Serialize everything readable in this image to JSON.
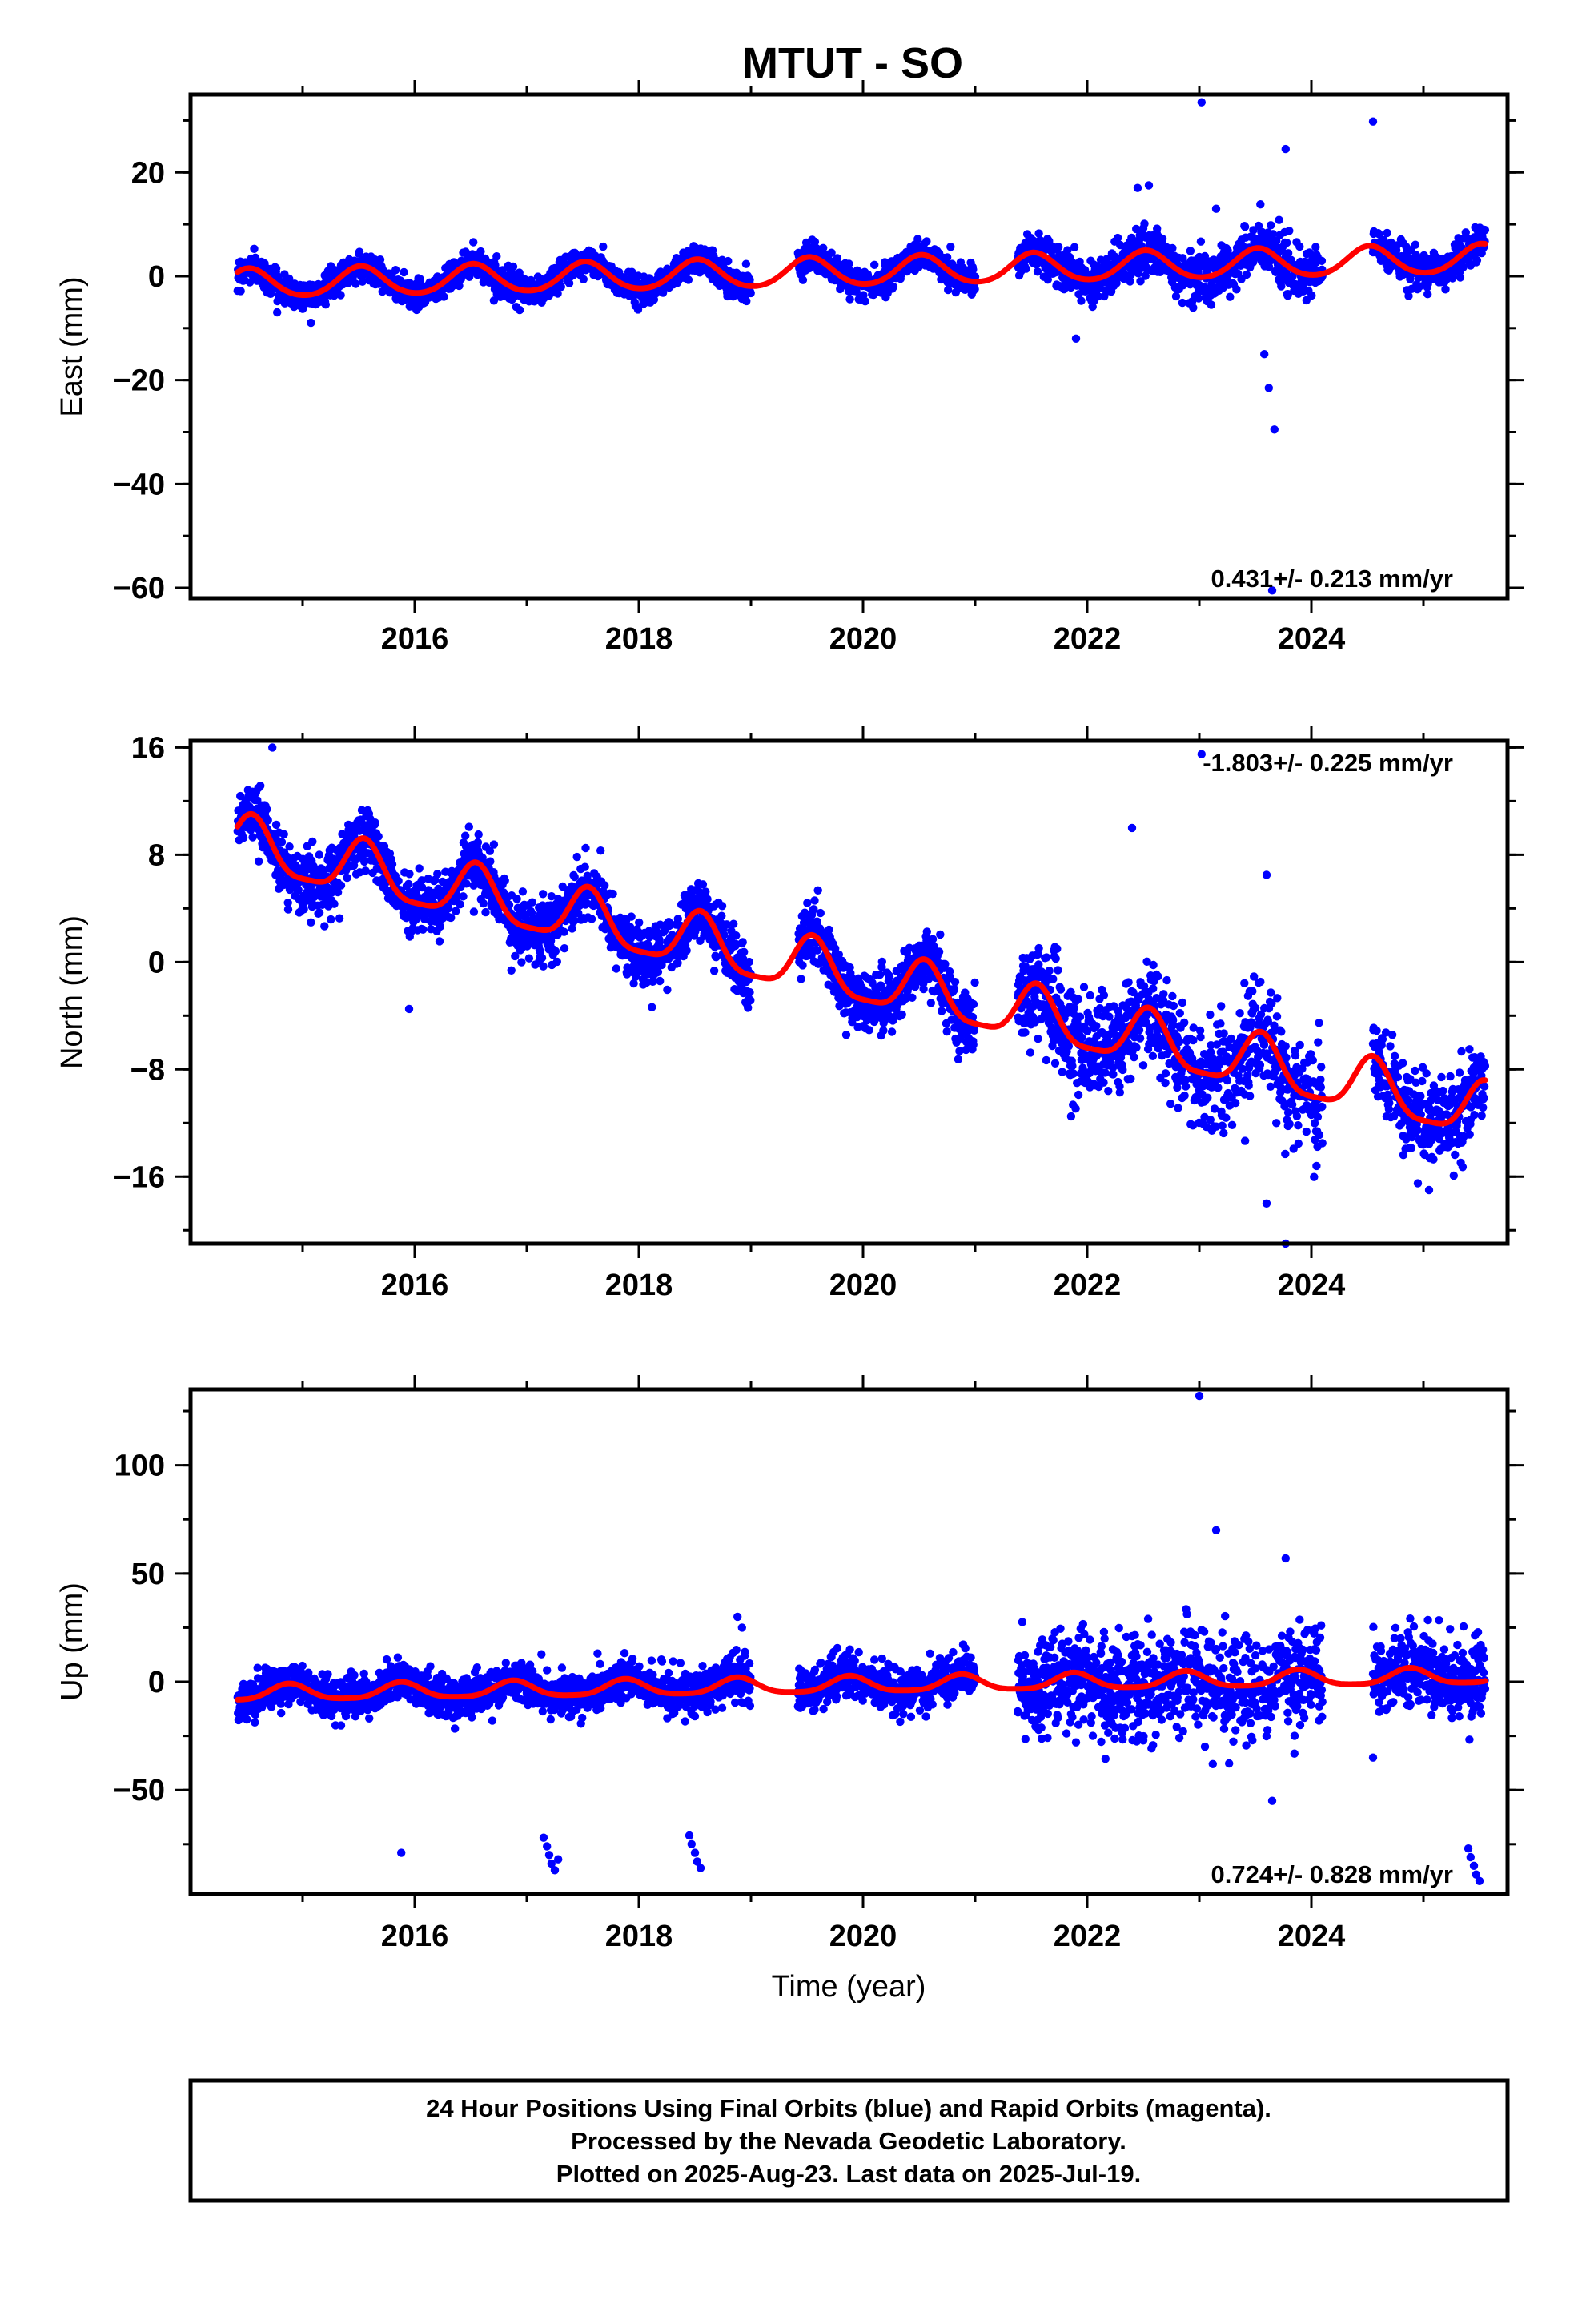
{
  "title": "MTUT - SO",
  "colors": {
    "final_orbits": "#0000ff",
    "model_curve": "#ff0000",
    "frame": "#000000"
  },
  "footer": {
    "lines": [
      "24 Hour Positions Using Final Orbits (blue) and Rapid Orbits (magenta).",
      "Processed by the Nevada Geodetic Laboratory.",
      "Plotted on 2025-Aug-23. Last data on 2025-Jul-19."
    ]
  },
  "chart_data": [
    {
      "type": "scatter",
      "ylabel": "East (mm)",
      "xlabel": "",
      "rate": "0.431+/- 0.213 mm/yr",
      "rate_position": "bottom-right",
      "xlim": [
        2014.0,
        2025.75
      ],
      "ylim": [
        -62,
        35
      ],
      "x_ticks": [
        2016,
        2018,
        2020,
        2022,
        2024
      ],
      "x_tick_labels": [
        "2016",
        "2018",
        "2020",
        "2022",
        "2024"
      ],
      "y_ticks": [
        20,
        0,
        -20,
        -40,
        -60
      ],
      "y_tick_labels": [
        "20",
        "0",
        "−20",
        "−40",
        "−60"
      ],
      "grid": false,
      "model": {
        "intercept": -1.5,
        "rate": 0.431,
        "annual_amp": 2.7,
        "annual_phase_year": 0.52,
        "semiannual_amp": 0.3
      },
      "segments": [
        {
          "start": 2014.42,
          "end": 2019.0,
          "scatter": 1.3,
          "density": 1
        },
        {
          "start": 2019.42,
          "end": 2021.0,
          "scatter": 1.3,
          "density": 1
        },
        {
          "start": 2021.38,
          "end": 2022.8,
          "scatter": 2.0,
          "density": 1
        },
        {
          "start": 2022.8,
          "end": 2024.1,
          "scatter": 2.6,
          "density": 0.8
        },
        {
          "start": 2024.55,
          "end": 2025.55,
          "scatter": 1.7,
          "density": 0.9
        }
      ],
      "outliers": [
        [
          2023.02,
          33.5
        ],
        [
          2024.55,
          29.8
        ],
        [
          2023.77,
          24.5
        ],
        [
          2023.58,
          -15
        ],
        [
          2023.62,
          -21.5
        ],
        [
          2023.67,
          -29.5
        ],
        [
          2023.65,
          -60.5
        ],
        [
          2021.9,
          -12
        ],
        [
          2022.45,
          17
        ],
        [
          2022.55,
          17.5
        ],
        [
          2023.15,
          13
        ]
      ]
    },
    {
      "type": "scatter",
      "ylabel": "North (mm)",
      "xlabel": "",
      "rate": "-1.803+/- 0.225 mm/yr",
      "rate_position": "top-right",
      "xlim": [
        2014.0,
        2025.75
      ],
      "ylim": [
        -21,
        16.5
      ],
      "x_ticks": [
        2016,
        2018,
        2020,
        2022,
        2024
      ],
      "x_tick_labels": [
        "2016",
        "2018",
        "2020",
        "2022",
        "2024"
      ],
      "y_ticks": [
        16,
        8,
        0,
        -8,
        -16
      ],
      "y_tick_labels": [
        "16",
        "8",
        "0",
        "−8",
        "−16"
      ],
      "grid": false,
      "model": {
        "intercept": 8.8,
        "rate": -1.803,
        "annual_amp": 2.0,
        "annual_phase_year": 0.55,
        "semiannual_amp": 0.5
      },
      "segments": [
        {
          "start": 2014.42,
          "end": 2019.0,
          "scatter": 1.1,
          "density": 1
        },
        {
          "start": 2019.42,
          "end": 2021.0,
          "scatter": 1.1,
          "density": 1
        },
        {
          "start": 2021.38,
          "end": 2022.8,
          "scatter": 1.8,
          "density": 1
        },
        {
          "start": 2022.8,
          "end": 2024.1,
          "scatter": 2.2,
          "density": 0.8
        },
        {
          "start": 2024.55,
          "end": 2025.55,
          "scatter": 1.5,
          "density": 0.9
        }
      ],
      "outliers": [
        [
          2014.73,
          16
        ],
        [
          2023.02,
          15.5
        ],
        [
          2022.4,
          10
        ],
        [
          2023.6,
          6.5
        ],
        [
          2023.6,
          -18
        ],
        [
          2023.77,
          -21
        ],
        [
          2015.95,
          -3.5
        ],
        [
          2024.95,
          -16.5
        ],
        [
          2025.05,
          -17
        ]
      ]
    },
    {
      "type": "scatter",
      "ylabel": "Up (mm)",
      "xlabel": "Time (year)",
      "rate": "0.724+/- 0.828 mm/yr",
      "rate_position": "bottom-right",
      "xlim": [
        2014.0,
        2025.75
      ],
      "ylim": [
        -98,
        135
      ],
      "x_ticks": [
        2016,
        2018,
        2020,
        2022,
        2024
      ],
      "x_tick_labels": [
        "2016",
        "2018",
        "2020",
        "2022",
        "2024"
      ],
      "y_ticks": [
        100,
        50,
        0,
        -50
      ],
      "y_tick_labels": [
        "100",
        "50",
        "0",
        "−50"
      ],
      "grid": false,
      "model": {
        "intercept": -5.5,
        "rate": 0.724,
        "annual_amp": 3.6,
        "annual_phase_year": 0.88,
        "semiannual_amp": 0.8
      },
      "segments": [
        {
          "start": 2014.42,
          "end": 2019.0,
          "scatter": 4.5,
          "density": 1
        },
        {
          "start": 2019.42,
          "end": 2021.0,
          "scatter": 4.8,
          "density": 1
        },
        {
          "start": 2021.38,
          "end": 2022.8,
          "scatter": 11,
          "density": 1
        },
        {
          "start": 2022.8,
          "end": 2024.1,
          "scatter": 12,
          "density": 0.8
        },
        {
          "start": 2024.55,
          "end": 2025.55,
          "scatter": 9,
          "density": 0.9
        }
      ],
      "outliers": [
        [
          2023.0,
          132
        ],
        [
          2023.15,
          70
        ],
        [
          2023.77,
          57
        ],
        [
          2023.65,
          -55
        ],
        [
          2024.55,
          -35
        ],
        [
          2015.88,
          -79
        ],
        [
          2017.15,
          -72
        ],
        [
          2017.18,
          -76
        ],
        [
          2017.2,
          -80
        ],
        [
          2017.22,
          -84
        ],
        [
          2017.25,
          -87
        ],
        [
          2017.28,
          -82
        ],
        [
          2018.45,
          -71
        ],
        [
          2018.47,
          -75
        ],
        [
          2018.5,
          -79
        ],
        [
          2018.52,
          -83
        ],
        [
          2018.55,
          -86
        ],
        [
          2025.4,
          -77
        ],
        [
          2025.42,
          -81
        ],
        [
          2025.45,
          -85
        ],
        [
          2025.47,
          -89
        ],
        [
          2025.5,
          -92
        ],
        [
          2018.88,
          30
        ],
        [
          2018.92,
          25
        ],
        [
          2023.05,
          -30
        ],
        [
          2023.12,
          -38
        ],
        [
          2021.9,
          -28
        ],
        [
          2022.05,
          -25
        ],
        [
          2023.85,
          -25
        ],
        [
          2023.9,
          -20
        ]
      ]
    }
  ]
}
